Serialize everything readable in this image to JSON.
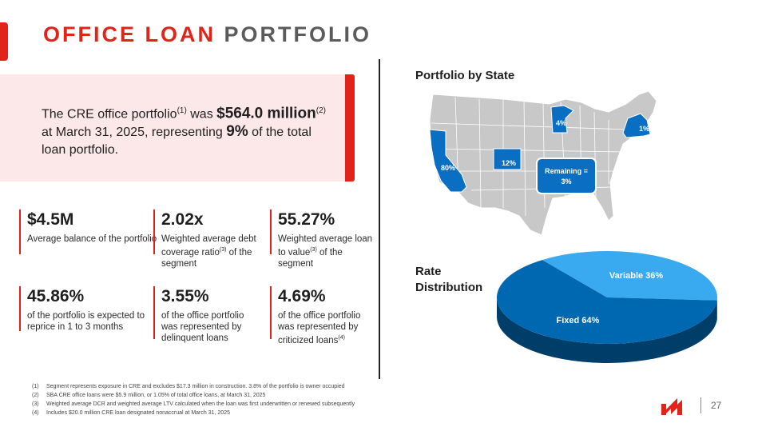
{
  "title": {
    "part1": "OFFICE LOAN",
    "part2": "PORTFOLIO"
  },
  "summary": {
    "t1": "The CRE office portfolio",
    "s1": "(1)",
    "t2": " was ",
    "amount": "$564.0 million",
    "s2": "(2)",
    "t3": " at March 31, 2025, representing ",
    "pct": "9%",
    "t4": " of the total loan portfolio."
  },
  "stats": [
    {
      "value": "$4.5M",
      "desc": "Average balance of the portfolio"
    },
    {
      "value": "2.02x",
      "desc_a": "Weighted average debt coverage ratio",
      "sup": "(3)",
      "desc_b": " of the segment"
    },
    {
      "value": "55.27%",
      "desc_a": "Weighted average loan to value",
      "sup": "(3)",
      "desc_b": " of the segment"
    },
    {
      "value": "45.86%",
      "desc": "of the portfolio is expected to reprice in 1 to 3 months"
    },
    {
      "value": "3.55%",
      "desc": "of the office portfolio was represented by delinquent loans"
    },
    {
      "value": "4.69%",
      "desc_a": "of the office portfolio was represented by criticized loans",
      "sup": "(4)",
      "desc_b": ""
    }
  ],
  "footnotes": [
    {
      "n": "(1)",
      "text": "Segment represents exposure in CRE and excludes $17.3 million in construction. 3.8% of the portfolio is owner occupied"
    },
    {
      "n": "(2)",
      "text": "SBA CRE office loans were $5.9 million, or 1.05% of total office loans, at March 31, 2025"
    },
    {
      "n": "(3)",
      "text": "Weighted average DCR and weighted average LTV calculated when the loan was first underwritten or renewed subsequently"
    },
    {
      "n": "(4)",
      "text": "Includes $20.0 million CRE loan designated nonaccrual at March 31, 2025"
    }
  ],
  "map": {
    "title": "Portfolio by State",
    "labels": {
      "ca": "80%",
      "co": "12%",
      "mn": "4%",
      "ny": "1%"
    },
    "remaining_line1": "Remaining =",
    "remaining_line2": "3%"
  },
  "rate": {
    "title_line1": "Rate",
    "title_line2": "Distribution"
  },
  "chart_data": {
    "type": "pie",
    "title": "Rate Distribution",
    "categories": [
      "Variable",
      "Fixed"
    ],
    "values": [
      36,
      64
    ],
    "labels": [
      "Variable 36%",
      "Fixed 64%"
    ],
    "colors": [
      "#3aaaf0",
      "#0067b1"
    ]
  },
  "colors": {
    "accent": "#e2231a",
    "highlight_state": "#0a6fc2",
    "map_base": "#c8c8c8"
  },
  "page_number": "27"
}
